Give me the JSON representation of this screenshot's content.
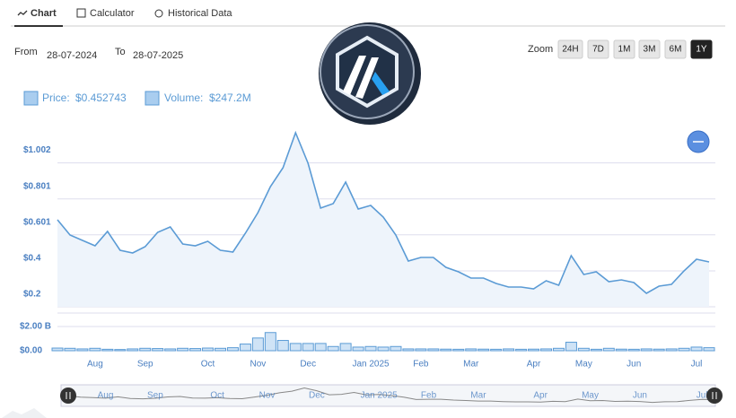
{
  "ui": {
    "tabs": [
      "Chart",
      "Calculator",
      "Historical Data"
    ],
    "from_label": "From",
    "from_date": "28-07-2024",
    "to_label": "To",
    "to_date": "28-07-2025",
    "zoom_label": "Zoom",
    "zoom_buttons": [
      "24H",
      "7D",
      "1M",
      "3M",
      "6M",
      "1Y"
    ],
    "zoom_active": "1Y"
  },
  "chart_data": [
    {
      "type": "line",
      "categories": [
        null,
        null,
        null,
        "Aug",
        null,
        null,
        null,
        "Sep",
        null,
        null,
        null,
        null,
        "Oct",
        null,
        null,
        null,
        "Nov",
        null,
        null,
        null,
        "Dec",
        null,
        null,
        null,
        null,
        "Jan 2025",
        null,
        null,
        null,
        "Feb",
        null,
        null,
        null,
        "Mar",
        null,
        null,
        null,
        null,
        "Apr",
        null,
        null,
        null,
        "May",
        null,
        null,
        null,
        "Jun",
        null,
        null,
        null,
        null,
        "Jul",
        null
      ],
      "series": [
        {
          "name": "Price:",
          "legend_value": "$0.452743",
          "color": "#5b9bd5",
          "values": [
            0.685,
            0.6,
            0.57,
            0.54,
            0.62,
            0.515,
            0.5,
            0.535,
            0.615,
            0.645,
            0.55,
            0.54,
            0.565,
            0.515,
            0.505,
            0.61,
            0.725,
            0.87,
            0.975,
            1.17,
            1.0,
            0.75,
            0.775,
            0.895,
            0.745,
            0.765,
            0.7,
            0.6,
            0.455,
            0.475,
            0.475,
            0.42,
            0.395,
            0.36,
            0.36,
            0.33,
            0.31,
            0.31,
            0.3,
            0.345,
            0.32,
            0.485,
            0.38,
            0.395,
            0.34,
            0.35,
            0.335,
            0.275,
            0.315,
            0.325,
            0.4,
            0.465,
            0.45
          ]
        }
      ],
      "ylim": [
        0.2,
        1.2
      ],
      "yticks": [
        {
          "value": 0.2,
          "label": "$0.2"
        },
        {
          "value": 0.4,
          "label": "$0.4"
        },
        {
          "value": 0.601,
          "label": "$0.601"
        },
        {
          "value": 0.801,
          "label": "$0.801"
        },
        {
          "value": 1.002,
          "label": "$1.002"
        }
      ],
      "grid": true
    },
    {
      "type": "bar",
      "series": [
        {
          "name": "Volume:",
          "legend_value": "$247.2M",
          "color": "#5b9bd5",
          "values": [
            220000000,
            200000000,
            150000000,
            200000000,
            120000000,
            100000000,
            150000000,
            200000000,
            180000000,
            150000000,
            200000000,
            180000000,
            220000000,
            200000000,
            250000000,
            550000000,
            1050000000,
            1500000000,
            850000000,
            600000000,
            600000000,
            600000000,
            350000000,
            600000000,
            300000000,
            350000000,
            300000000,
            350000000,
            150000000,
            150000000,
            150000000,
            130000000,
            120000000,
            150000000,
            130000000,
            120000000,
            150000000,
            120000000,
            130000000,
            150000000,
            200000000,
            700000000,
            200000000,
            120000000,
            200000000,
            130000000,
            120000000,
            150000000,
            130000000,
            150000000,
            200000000,
            300000000,
            250000000
          ]
        }
      ],
      "ylim": [
        0,
        2000000000
      ],
      "yticks": [
        {
          "value": 0,
          "label": "$0.00"
        },
        {
          "value": 2000000000,
          "label": "$2.00 B"
        }
      ],
      "grid": true
    }
  ]
}
